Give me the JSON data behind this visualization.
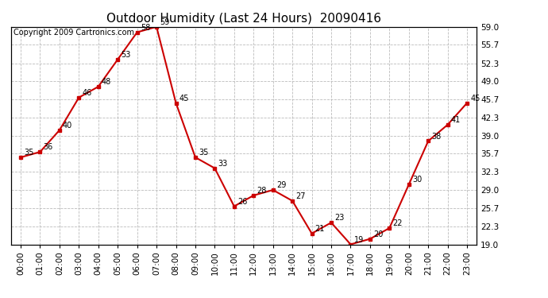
{
  "title": "Outdoor Humidity (Last 24 Hours)  20090416",
  "copyright": "Copyright 2009 Cartronics.com",
  "x_labels": [
    "00:00",
    "01:00",
    "02:00",
    "03:00",
    "04:00",
    "05:00",
    "06:00",
    "07:00",
    "08:00",
    "09:00",
    "10:00",
    "11:00",
    "12:00",
    "13:00",
    "14:00",
    "15:00",
    "16:00",
    "17:00",
    "18:00",
    "19:00",
    "20:00",
    "21:00",
    "22:00",
    "23:00"
  ],
  "y_values": [
    35,
    36,
    40,
    46,
    48,
    53,
    58,
    59,
    45,
    35,
    33,
    26,
    28,
    29,
    27,
    21,
    23,
    19,
    20,
    22,
    30,
    38,
    41,
    45
  ],
  "y_labels": [
    "19.0",
    "22.3",
    "25.7",
    "29.0",
    "32.3",
    "35.7",
    "39.0",
    "42.3",
    "45.7",
    "49.0",
    "52.3",
    "55.7",
    "59.0"
  ],
  "y_ticks": [
    19.0,
    22.3,
    25.7,
    29.0,
    32.3,
    35.7,
    39.0,
    42.3,
    45.7,
    49.0,
    52.3,
    55.7,
    59.0
  ],
  "ylim": [
    19.0,
    59.0
  ],
  "line_color": "#cc0000",
  "marker_color": "#cc0000",
  "bg_color": "#ffffff",
  "grid_color": "#bbbbbb",
  "title_fontsize": 11,
  "copyright_fontsize": 7,
  "label_fontsize": 7.5,
  "tick_fontsize": 7.5,
  "annotation_fontsize": 7
}
